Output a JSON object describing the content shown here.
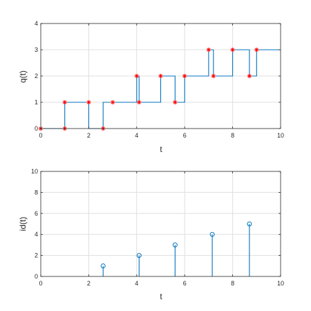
{
  "chart_data": [
    {
      "type": "line",
      "subtype": "stairs",
      "ylabel": "q(t)",
      "xlabel": "t",
      "xlim": [
        0,
        10
      ],
      "ylim": [
        0,
        4
      ],
      "xticks": [
        0,
        2,
        4,
        6,
        8,
        10
      ],
      "yticks": [
        0,
        1,
        2,
        3,
        4
      ],
      "grid": true,
      "line_color": "#0072bd",
      "marker_color": "#ff0000",
      "stairs": [
        [
          0,
          0
        ],
        [
          1,
          0
        ],
        [
          1,
          1
        ],
        [
          2,
          1
        ],
        [
          2,
          0
        ],
        [
          2.6,
          0
        ],
        [
          2.6,
          1
        ],
        [
          4,
          1
        ],
        [
          4,
          2
        ],
        [
          4.1,
          2
        ],
        [
          4.1,
          1
        ],
        [
          5,
          1
        ],
        [
          5,
          2
        ],
        [
          5.6,
          2
        ],
        [
          5.6,
          1
        ],
        [
          6,
          1
        ],
        [
          6,
          2
        ],
        [
          7,
          2
        ],
        [
          7,
          3
        ],
        [
          7.2,
          3
        ],
        [
          7.2,
          2
        ],
        [
          8,
          2
        ],
        [
          8,
          3
        ],
        [
          8.7,
          3
        ],
        [
          8.7,
          2
        ],
        [
          9,
          2
        ],
        [
          9,
          3
        ],
        [
          10,
          3
        ]
      ],
      "markers": [
        [
          0,
          0
        ],
        [
          1,
          0
        ],
        [
          1,
          1
        ],
        [
          2,
          1
        ],
        [
          2.6,
          0
        ],
        [
          3,
          1
        ],
        [
          4,
          2
        ],
        [
          4.1,
          1
        ],
        [
          5,
          2
        ],
        [
          5.6,
          1
        ],
        [
          6,
          2
        ],
        [
          7,
          3
        ],
        [
          7.2,
          2
        ],
        [
          8,
          3
        ],
        [
          8.7,
          2
        ],
        [
          9,
          3
        ]
      ]
    },
    {
      "type": "stem",
      "ylabel": "id(t)",
      "xlabel": "t",
      "xlim": [
        0,
        10
      ],
      "ylim": [
        0,
        10
      ],
      "xticks": [
        0,
        2,
        4,
        6,
        8,
        10
      ],
      "yticks": [
        0,
        2,
        4,
        6,
        8,
        10
      ],
      "grid": true,
      "line_color": "#0072bd",
      "points": [
        [
          2.6,
          1
        ],
        [
          4.1,
          2
        ],
        [
          5.6,
          3
        ],
        [
          7.15,
          4
        ],
        [
          8.7,
          5
        ]
      ]
    }
  ]
}
